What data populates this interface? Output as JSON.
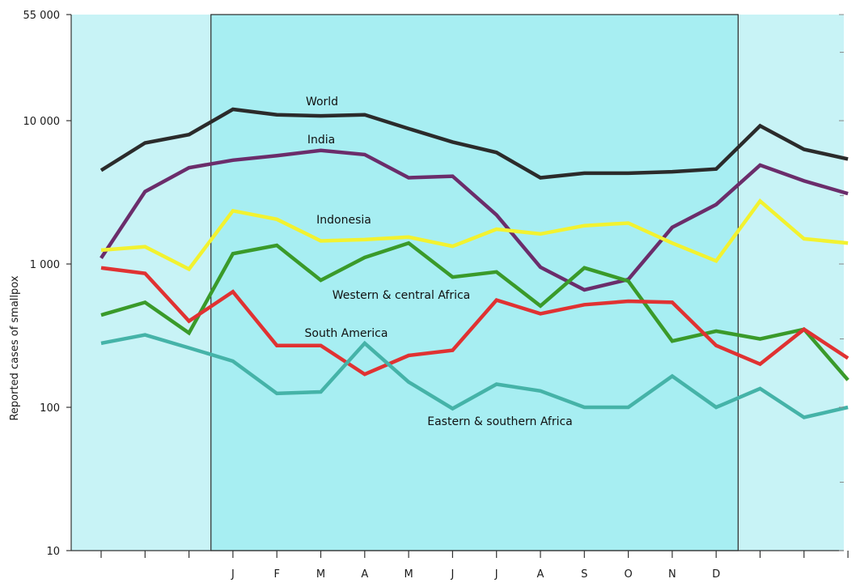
{
  "chart_data": {
    "type": "line",
    "ylabel": "Reported cases of smallpox",
    "yscale": "log",
    "ylim": [
      10,
      55000
    ],
    "yticks": [
      {
        "value": 55000,
        "label": "55 000"
      },
      {
        "value": 10000,
        "label": "10 000"
      },
      {
        "value": 1000,
        "label": "1 000"
      },
      {
        "value": 100,
        "label": "100"
      },
      {
        "value": 10,
        "label": "10"
      }
    ],
    "x": [
      1,
      2,
      3,
      4,
      5,
      6,
      7,
      8,
      9,
      10,
      11,
      12,
      13,
      14,
      15,
      16,
      17,
      18
    ],
    "month_labels": [
      {
        "x": 4,
        "label": "J"
      },
      {
        "x": 5,
        "label": "F"
      },
      {
        "x": 6,
        "label": "M"
      },
      {
        "x": 7,
        "label": "A"
      },
      {
        "x": 8,
        "label": "M"
      },
      {
        "x": 9,
        "label": "J"
      },
      {
        "x": 10,
        "label": "J"
      },
      {
        "x": 11,
        "label": "A"
      },
      {
        "x": 12,
        "label": "S"
      },
      {
        "x": 13,
        "label": "O"
      },
      {
        "x": 14,
        "label": "N"
      },
      {
        "x": 15,
        "label": "D"
      }
    ],
    "highlight_range": [
      3.5,
      15.5
    ],
    "background_colors": {
      "outer": "#c8f3f6",
      "highlight": "#a7eef2"
    },
    "series": [
      {
        "name": "World",
        "color": "#2b2b2b",
        "values": [
          4500,
          7000,
          8000,
          12000,
          11000,
          10800,
          11000,
          8800,
          7100,
          6000,
          4000,
          4300,
          4300,
          4400,
          4600,
          9200,
          6300,
          5400
        ]
      },
      {
        "name": "India",
        "color": "#6b2d6b",
        "values": [
          1100,
          3200,
          4700,
          5300,
          5700,
          6200,
          5800,
          4000,
          4100,
          2200,
          950,
          660,
          780,
          1800,
          2600,
          4900,
          3800,
          3100
        ]
      },
      {
        "name": "Indonesia",
        "color": "#f2f230",
        "values": [
          1250,
          1320,
          920,
          2350,
          2050,
          1450,
          1480,
          1540,
          1330,
          1750,
          1620,
          1850,
          1930,
          1400,
          1050,
          2750,
          1500,
          1400
        ]
      },
      {
        "name": "Western & central Africa",
        "color": "#3a9a2a",
        "values": [
          440,
          540,
          330,
          1180,
          1350,
          770,
          1110,
          1400,
          810,
          880,
          510,
          940,
          760,
          290,
          340,
          300,
          350,
          155
        ]
      },
      {
        "name": "South America",
        "color": "#e03232",
        "values": [
          940,
          860,
          400,
          640,
          270,
          270,
          170,
          230,
          250,
          560,
          450,
          520,
          550,
          540,
          270,
          200,
          350,
          220
        ]
      },
      {
        "name": "Eastern & southern Africa",
        "color": "#45b3a8",
        "values": [
          280,
          320,
          260,
          210,
          125,
          128,
          280,
          150,
          98,
          145,
          130,
          100,
          100,
          165,
          100,
          135,
          85,
          100
        ]
      }
    ]
  }
}
